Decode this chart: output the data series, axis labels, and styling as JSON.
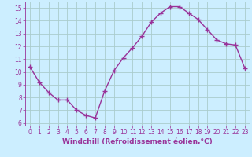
{
  "x": [
    0,
    1,
    2,
    3,
    4,
    5,
    6,
    7,
    8,
    9,
    10,
    11,
    12,
    13,
    14,
    15,
    16,
    17,
    18,
    19,
    20,
    21,
    22,
    23
  ],
  "y": [
    10.4,
    9.2,
    8.4,
    7.8,
    7.8,
    7.0,
    6.6,
    6.4,
    8.5,
    10.1,
    11.1,
    11.9,
    12.8,
    13.9,
    14.6,
    15.1,
    15.1,
    14.6,
    14.1,
    13.3,
    12.5,
    12.2,
    12.1,
    10.3
  ],
  "line_color": "#993399",
  "marker": "+",
  "marker_size": 4,
  "bg_color": "#cceeff",
  "grid_color": "#aacccc",
  "xlabel": "Windchill (Refroidissement éolien,°C)",
  "xlim": [
    -0.5,
    23.5
  ],
  "ylim": [
    5.8,
    15.5
  ],
  "yticks": [
    6,
    7,
    8,
    9,
    10,
    11,
    12,
    13,
    14,
    15
  ],
  "xticks": [
    0,
    1,
    2,
    3,
    4,
    5,
    6,
    7,
    8,
    9,
    10,
    11,
    12,
    13,
    14,
    15,
    16,
    17,
    18,
    19,
    20,
    21,
    22,
    23
  ],
  "tick_label_fontsize": 5.5,
  "xlabel_fontsize": 6.5,
  "line_width": 1.0,
  "marker_edge_width": 1.0
}
